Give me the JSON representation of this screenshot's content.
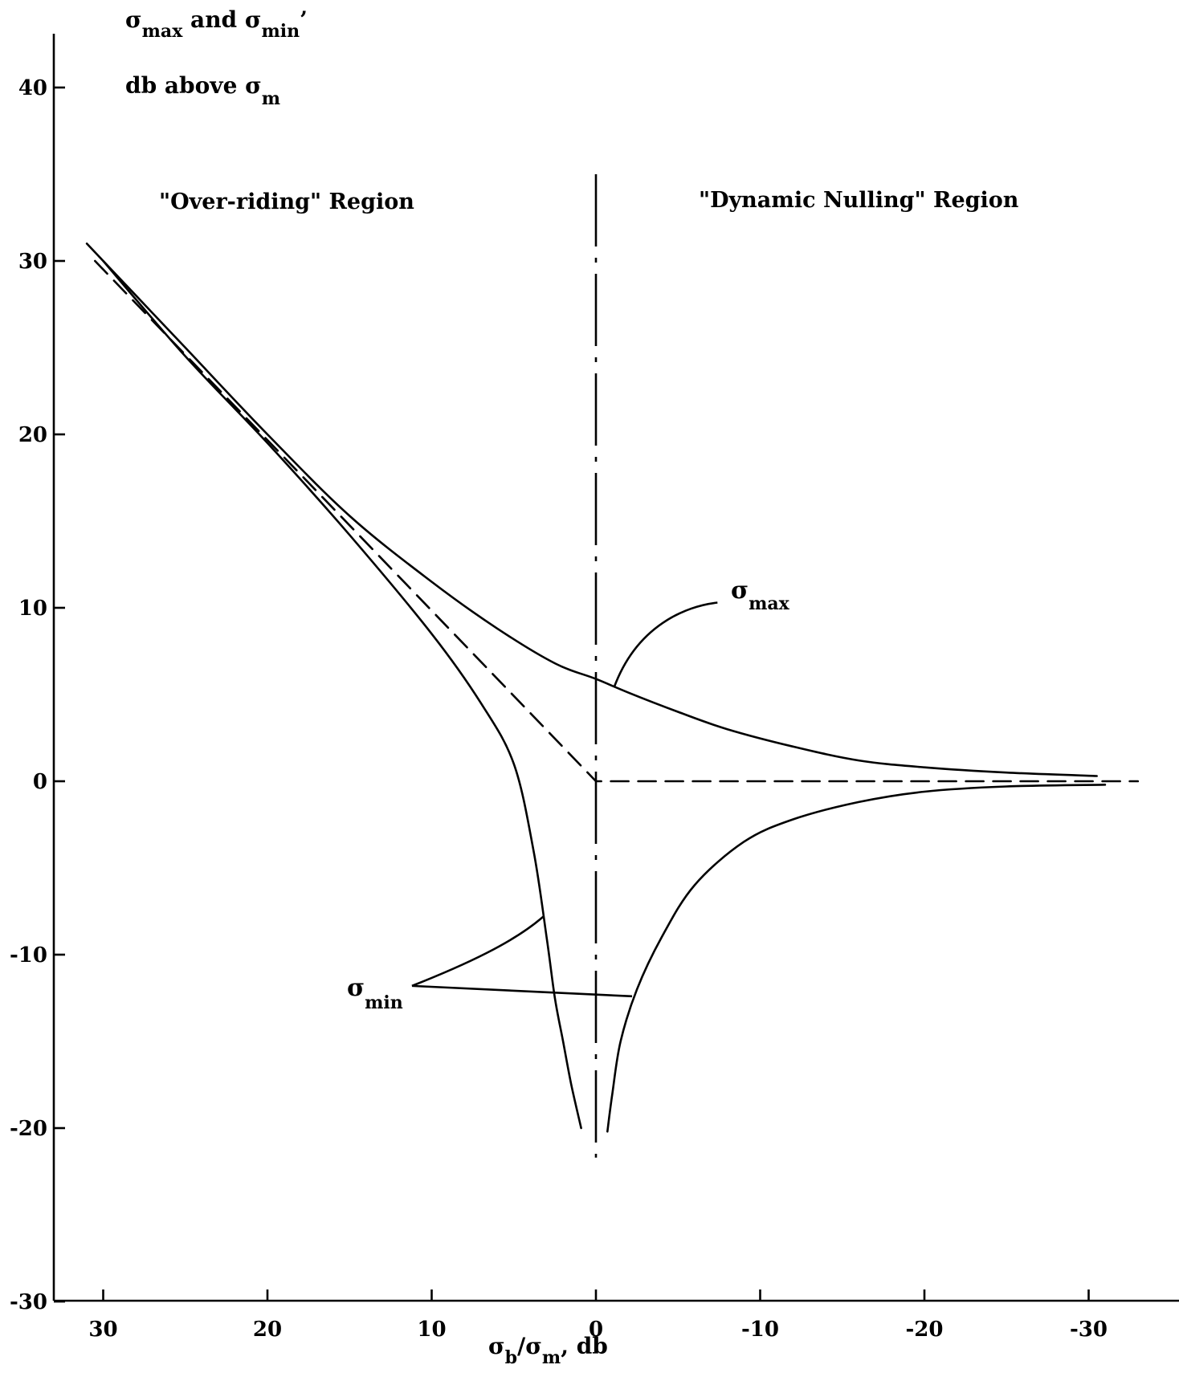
{
  "chart_data": {
    "type": "line",
    "y_axis_title": {
      "line1": {
        "s1": "σ",
        "s1_sub": "max",
        "mid": " and σ",
        "s2_sub": "min",
        "tail": "’"
      },
      "line2": {
        "text": "db above σ",
        "sub": "m"
      }
    },
    "x_axis_title": {
      "s1": "σ",
      "s1_sub": "b",
      "mid": "/σ",
      "s2_sub": "m",
      "tail": ",  db"
    },
    "x_ticks": [
      "30",
      "20",
      "10",
      "0",
      "-10",
      "-20",
      "-30"
    ],
    "x_tick_values": [
      30,
      20,
      10,
      0,
      -10,
      -20,
      -30
    ],
    "y_ticks": [
      "40",
      "30",
      "20",
      "10",
      "0",
      "-10",
      "-20",
      "-30"
    ],
    "y_tick_values": [
      40,
      30,
      20,
      10,
      0,
      -10,
      -20,
      -30
    ],
    "xlim": [
      33,
      -35
    ],
    "ylim": [
      -30,
      43
    ],
    "x_reversed": true,
    "regions": {
      "left": "\"Over-riding\" Region",
      "right": "\"Dynamic Nulling\" Region"
    },
    "labels": {
      "max": {
        "sym": "σ",
        "sub": "max"
      },
      "min": {
        "sym": "σ",
        "sub": "min"
      }
    },
    "series": [
      {
        "key": "sigma_max",
        "style": "solid",
        "points": [
          [
            31,
            31
          ],
          [
            28,
            28
          ],
          [
            25,
            25
          ],
          [
            20,
            20
          ],
          [
            15,
            15.3
          ],
          [
            10,
            11.5
          ],
          [
            6,
            8.8
          ],
          [
            2.5,
            6.8
          ],
          [
            0,
            5.9
          ],
          [
            -2,
            5.1
          ],
          [
            -5,
            4
          ],
          [
            -8,
            3
          ],
          [
            -12,
            2
          ],
          [
            -16,
            1.2
          ],
          [
            -20,
            0.8
          ],
          [
            -25,
            0.5
          ],
          [
            -30.5,
            0.3
          ]
        ]
      },
      {
        "key": "sigma_min_left",
        "style": "solid",
        "points": [
          [
            30,
            30
          ],
          [
            25,
            24.5
          ],
          [
            20,
            19.5
          ],
          [
            15,
            14.2
          ],
          [
            10,
            8.5
          ],
          [
            7,
            4.5
          ],
          [
            5,
            1
          ],
          [
            3.8,
            -4
          ],
          [
            3,
            -9
          ],
          [
            2.5,
            -12.5
          ],
          [
            2,
            -15
          ],
          [
            1.5,
            -17.5
          ],
          [
            0.9,
            -20
          ]
        ]
      },
      {
        "key": "sigma_min_right",
        "style": "solid",
        "points": [
          [
            -0.7,
            -20.2
          ],
          [
            -1,
            -18
          ],
          [
            -1.5,
            -15
          ],
          [
            -2.5,
            -12
          ],
          [
            -4,
            -9
          ],
          [
            -6,
            -6
          ],
          [
            -9,
            -3.5
          ],
          [
            -12,
            -2.2
          ],
          [
            -16,
            -1.2
          ],
          [
            -20,
            -0.6
          ],
          [
            -25,
            -0.3
          ],
          [
            -31,
            -0.2
          ]
        ]
      },
      {
        "key": "asymptote",
        "style": "dashed",
        "points": [
          [
            30.5,
            30
          ],
          [
            0,
            0
          ],
          [
            -33,
            0
          ]
        ]
      }
    ]
  }
}
